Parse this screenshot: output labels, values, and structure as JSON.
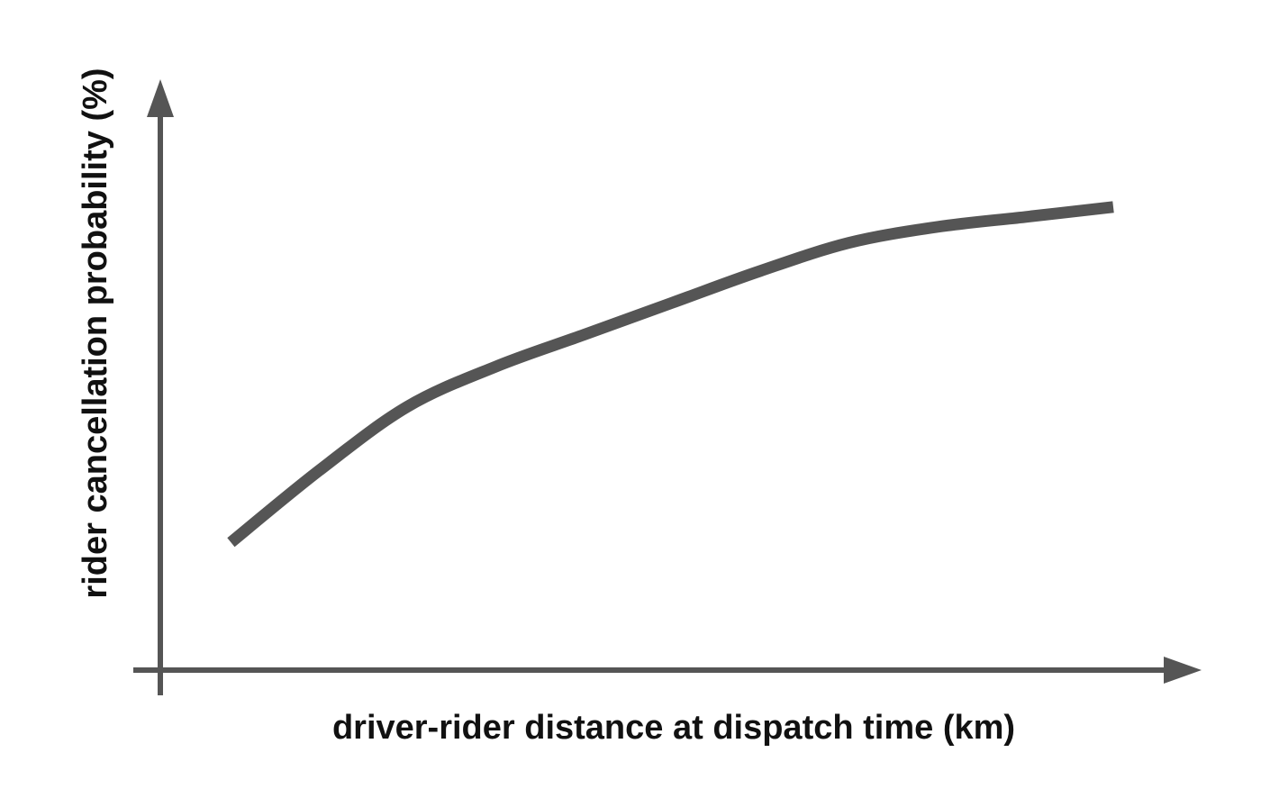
{
  "chart_data": {
    "type": "line",
    "title": "",
    "xlabel": "driver-rider distance at dispatch time (km)",
    "ylabel": "rider cancellation probability (%)",
    "x_ticks": [],
    "y_ticks": [],
    "grid": false,
    "legend": "none",
    "series": [
      {
        "x": [
          0.0,
          0.1,
          0.2,
          0.3,
          0.4,
          0.5,
          0.6,
          0.7,
          0.8,
          0.9,
          1.0
        ],
        "y": [
          0.14,
          0.32,
          0.48,
          0.58,
          0.66,
          0.74,
          0.82,
          0.89,
          0.93,
          0.955,
          0.98
        ]
      }
    ],
    "xlim": [
      -0.08,
      1.1
    ],
    "ylim": [
      -0.18,
      1.3
    ],
    "colors": {
      "axis": "#555555",
      "line": "#555555",
      "text": "#111111"
    }
  }
}
